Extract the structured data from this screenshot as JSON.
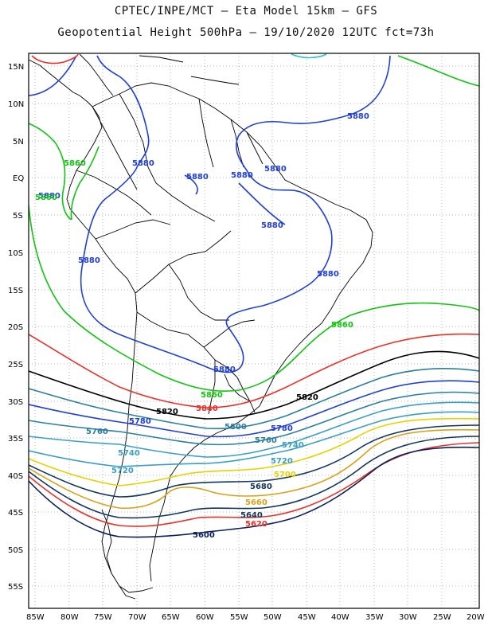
{
  "header": {
    "line1": "CPTEC/INPE/MCT –  Eta Model 15km – GFS",
    "line2": "Geopotential Height 500hPa – 19/10/2020 12UTC fct=73h"
  },
  "axes": {
    "lat_labels": [
      "15N",
      "10N",
      "5N",
      "EQ",
      "5S",
      "10S",
      "15S",
      "20S",
      "25S",
      "30S",
      "35S",
      "40S",
      "45S",
      "50S",
      "55S"
    ],
    "lon_labels": [
      "85W",
      "80W",
      "75W",
      "70W",
      "65W",
      "60W",
      "55W",
      "50W",
      "45W",
      "40W",
      "35W",
      "30W",
      "25W",
      "20W"
    ]
  },
  "contours": {
    "labels": [
      {
        "text": "5880",
        "color": "#1f3fd6"
      },
      {
        "text": "5880",
        "color": "#1f3fd6"
      },
      {
        "text": "5880",
        "color": "#1f3fd6"
      },
      {
        "text": "5880",
        "color": "#1f3fd6"
      },
      {
        "text": "5880",
        "color": "#1f3fd6"
      },
      {
        "text": "5880",
        "color": "#1f3fd6"
      },
      {
        "text": "5880",
        "color": "#1f3fd6"
      },
      {
        "text": "5880",
        "color": "#1f3fd6"
      },
      {
        "text": "5880",
        "color": "#1f3fd6"
      },
      {
        "text": "5880",
        "color": "#1f3fd6"
      },
      {
        "text": "5860",
        "color": "#11c411"
      },
      {
        "text": "5860",
        "color": "#11c411"
      },
      {
        "text": "5860",
        "color": "#11c411"
      },
      {
        "text": "5860",
        "color": "#11c411"
      },
      {
        "text": "5820",
        "color": "#000000"
      },
      {
        "text": "5820",
        "color": "#000000"
      },
      {
        "text": "5840",
        "color": "#e8322a"
      },
      {
        "text": "5800",
        "color": "#2a7f9e"
      },
      {
        "text": "5780",
        "color": "#1f3fd6"
      },
      {
        "text": "5780",
        "color": "#1f3fd6"
      },
      {
        "text": "5760",
        "color": "#2a7f9e"
      },
      {
        "text": "5760",
        "color": "#2a7f9e"
      },
      {
        "text": "5740",
        "color": "#3a9fc5"
      },
      {
        "text": "5740",
        "color": "#3a9fc5"
      },
      {
        "text": "5720",
        "color": "#3a9fc5"
      },
      {
        "text": "5720",
        "color": "#3a9fc5"
      },
      {
        "text": "5700",
        "color": "#e6d200"
      },
      {
        "text": "5680",
        "color": "#11355e"
      },
      {
        "text": "5660",
        "color": "#d9a21b"
      },
      {
        "text": "5640",
        "color": "#11355e"
      },
      {
        "text": "5620",
        "color": "#e8322a"
      },
      {
        "text": "5600",
        "color": "#0b1f5a"
      }
    ]
  }
}
